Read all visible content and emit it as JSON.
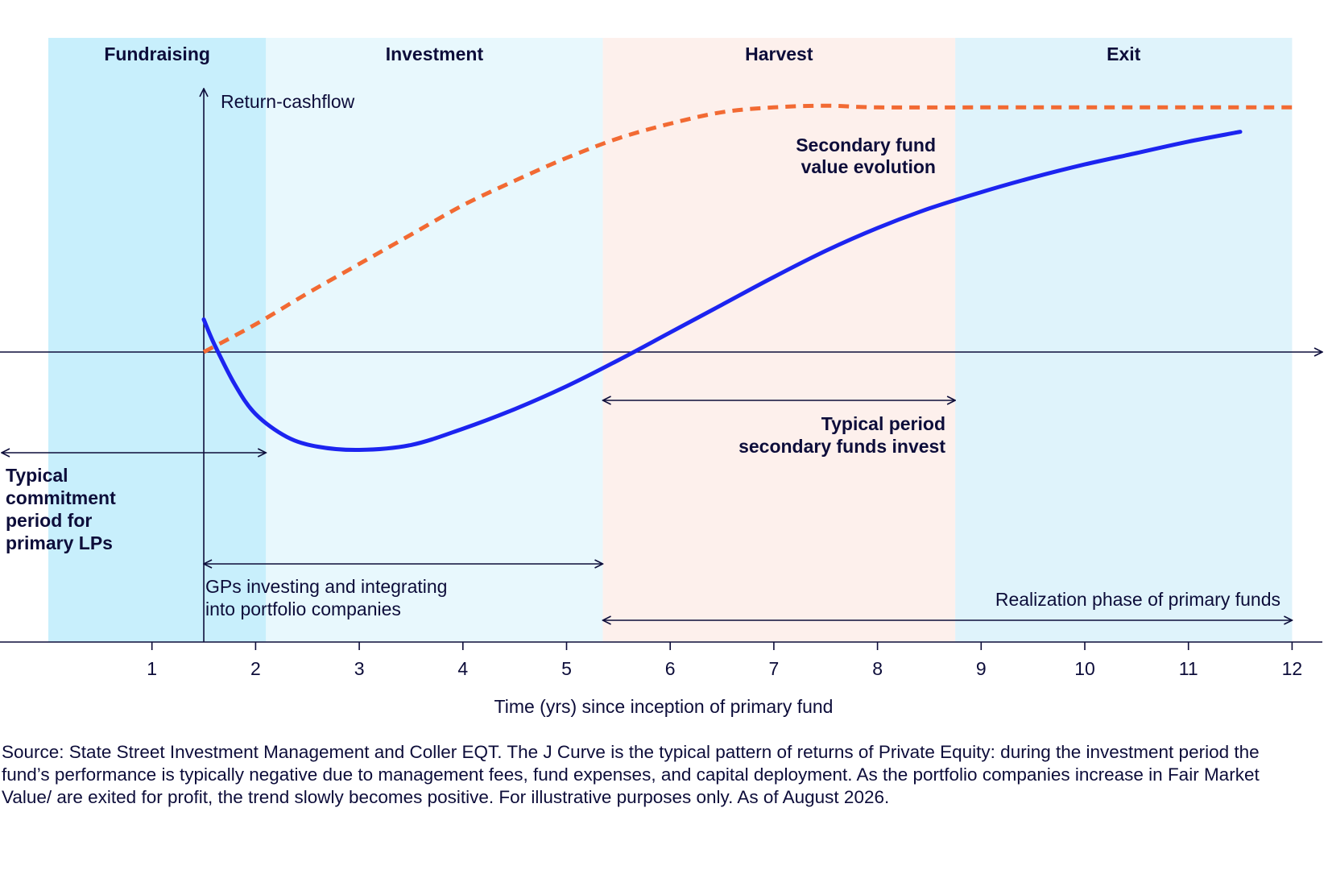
{
  "chart_data": {
    "type": "line",
    "xlabel": "Time (yrs) since inception of primary fund",
    "ylabel": "Return-cashflow",
    "x_ticks": [
      "1",
      "2",
      "3",
      "4",
      "5",
      "6",
      "7",
      "8",
      "9",
      "10",
      "11",
      "12"
    ],
    "xlim": [
      0,
      12.4
    ],
    "ylim": [
      -1.8,
      1.8
    ],
    "grid": false,
    "legend": "none",
    "phases": [
      {
        "name": "Fundraising",
        "start": 0,
        "end": 2.1,
        "color": "#c8effc"
      },
      {
        "name": "Investment",
        "start": 2.1,
        "end": 5.35,
        "color": "#e8f8fd"
      },
      {
        "name": "Harvest",
        "start": 5.35,
        "end": 8.75,
        "color": "#fdf0ec"
      },
      {
        "name": "Exit",
        "start": 8.75,
        "end": 12.0,
        "color": "#dff3fb"
      }
    ],
    "series": [
      {
        "name": "",
        "style": "solid",
        "color": "#1c24f0",
        "x": [
          1.5,
          1.6,
          1.8,
          2.0,
          2.3,
          2.6,
          3.0,
          3.5,
          4.0,
          4.5,
          5.0,
          5.5,
          6.0,
          6.5,
          7.0,
          7.5,
          8.0,
          8.5,
          9.0,
          9.5,
          10.0,
          10.5,
          11.0,
          11.5
        ],
        "y": [
          0.2,
          0.05,
          -0.2,
          -0.38,
          -0.52,
          -0.58,
          -0.6,
          -0.57,
          -0.47,
          -0.35,
          -0.21,
          -0.05,
          0.12,
          0.29,
          0.46,
          0.62,
          0.76,
          0.88,
          0.98,
          1.07,
          1.15,
          1.22,
          1.29,
          1.35
        ]
      },
      {
        "name": "Secondary fund value evolution",
        "style": "dashed",
        "color": "#f26a33",
        "x": [
          1.5,
          2.0,
          2.5,
          3.0,
          3.5,
          4.0,
          4.5,
          5.0,
          5.5,
          6.0,
          6.5,
          7.0,
          7.5,
          8.0,
          9.0,
          10.0,
          11.0,
          12.0
        ],
        "y": [
          0.0,
          0.17,
          0.36,
          0.54,
          0.72,
          0.9,
          1.05,
          1.19,
          1.31,
          1.4,
          1.47,
          1.5,
          1.51,
          1.5,
          1.5,
          1.5,
          1.5,
          1.5
        ]
      }
    ],
    "annotations": {
      "secondary_value": [
        "Secondary fund",
        "value evolution"
      ],
      "secondary_period": {
        "lines": [
          "Typical period",
          "secondary funds invest"
        ],
        "start": 5.35,
        "end": 8.75
      },
      "commitment_period": {
        "lines": [
          "Typical",
          "commitment",
          "period for",
          "primary LPs"
        ],
        "start": 0,
        "end": 2.1
      },
      "gps_investing": {
        "lines": [
          "GPs investing and integrating",
          "into portfolio companies"
        ],
        "start": 1.5,
        "end": 5.35
      },
      "realization": {
        "lines": [
          "Realization phase of primary funds"
        ],
        "start": 5.35,
        "end": 12.0
      }
    }
  },
  "footnote": "Source: State Street Investment Management and Coller EQT. The J Curve is the typical pattern of returns of Private Equity: during the investment period the fund’s performance is typically negative due to management fees, fund expenses, and capital deployment. As the portfolio companies increase in Fair Market Value/ are exited for profit, the trend slowly becomes positive. For illustrative purposes only. As of August 2026."
}
